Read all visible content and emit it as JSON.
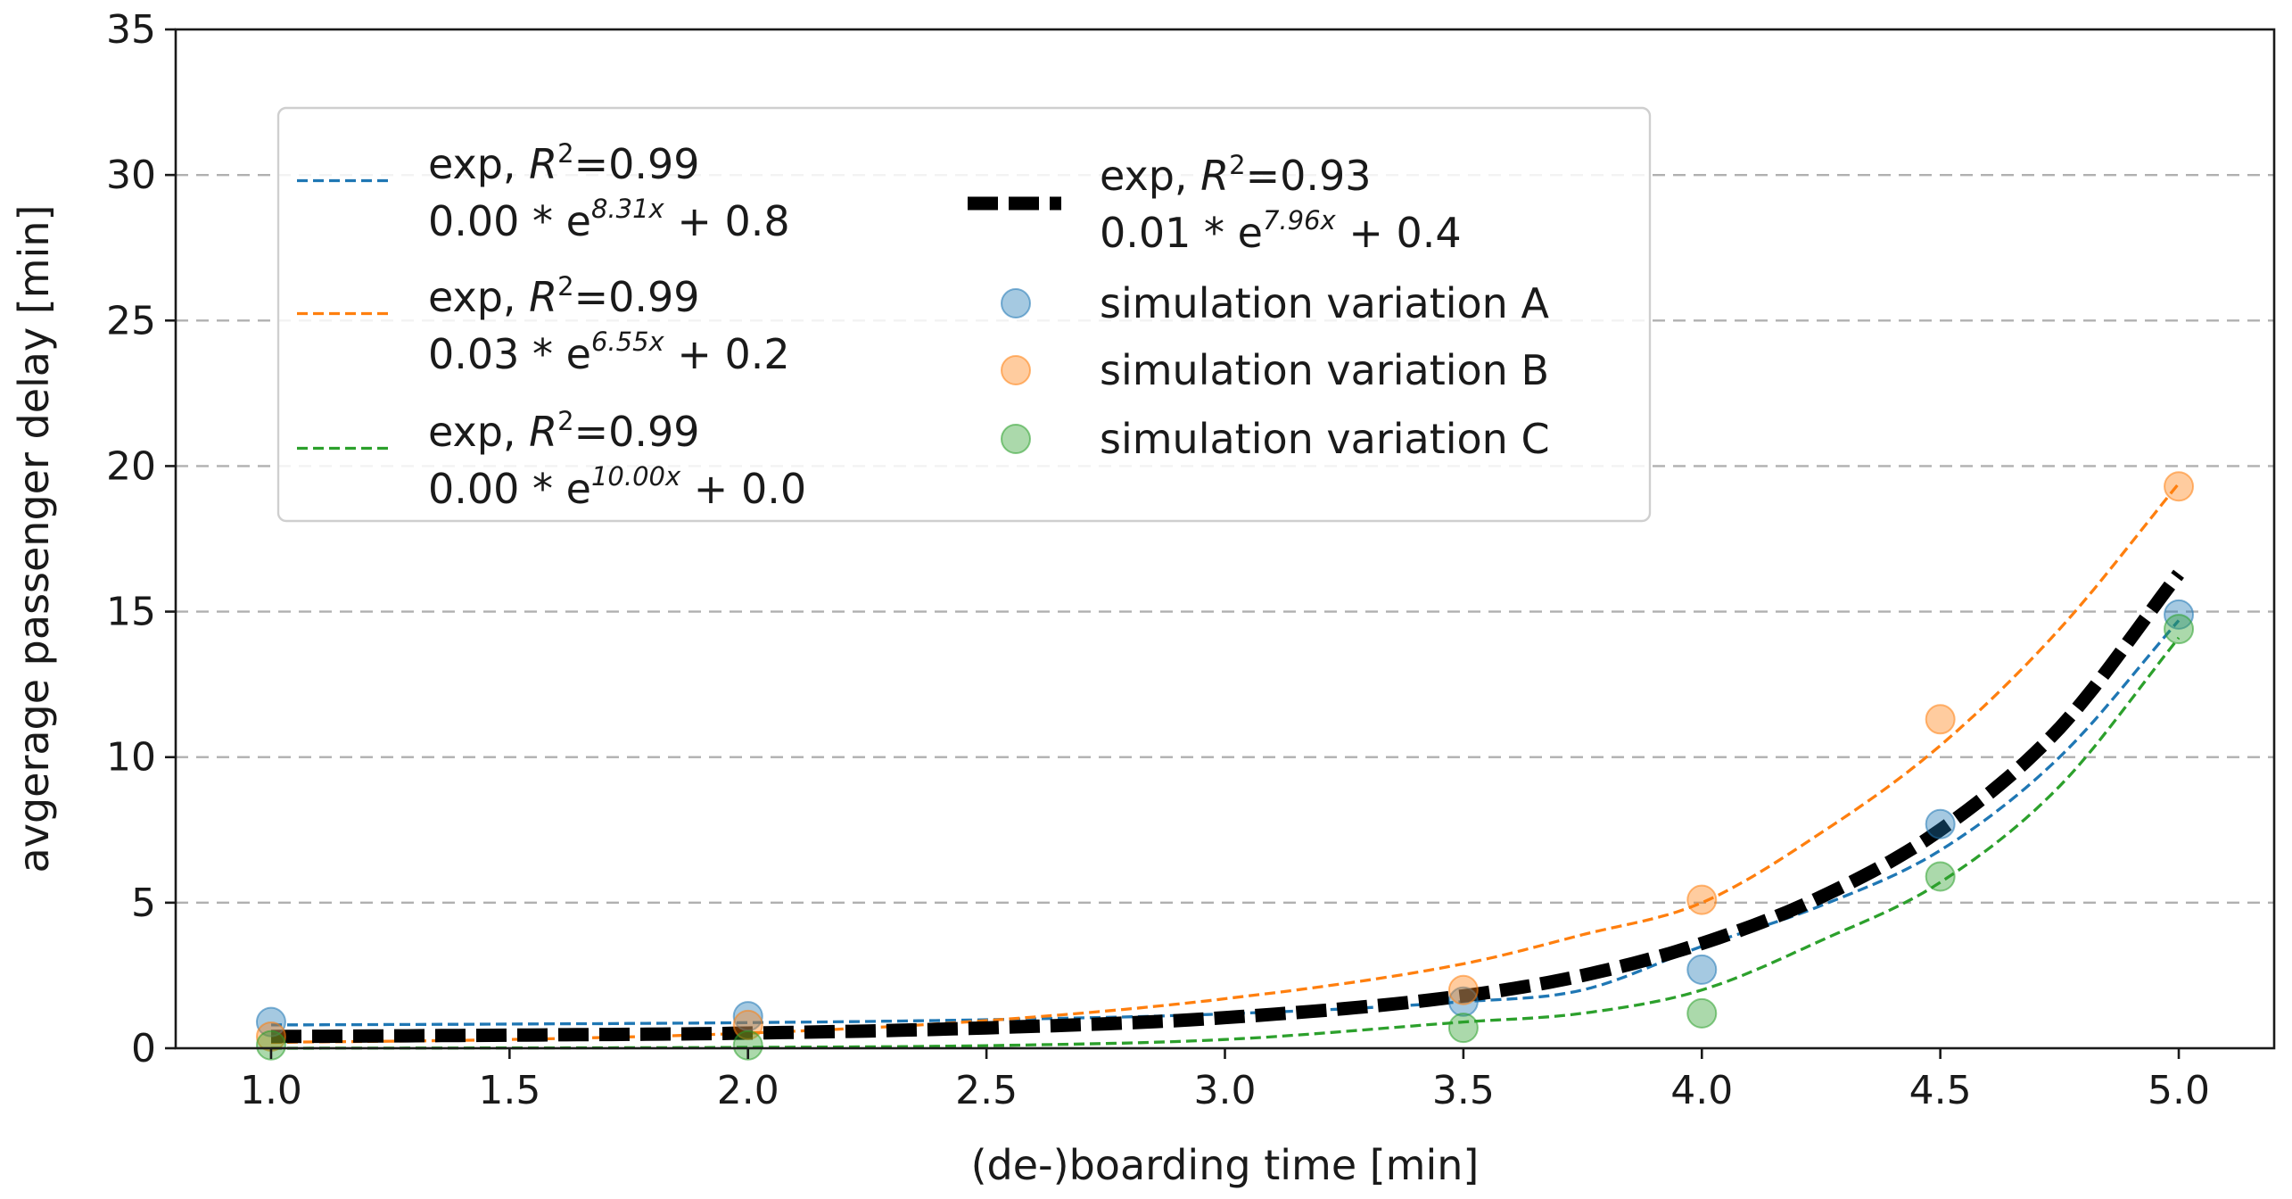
{
  "chart_data": {
    "type": "scatter",
    "title": "",
    "xlabel": "(de-)boarding time [min]",
    "ylabel": "avgerage passenger delay [min]",
    "xlim": [
      0.8,
      5.2
    ],
    "ylim": [
      0,
      35
    ],
    "xticks": [
      1.0,
      1.5,
      2.0,
      2.5,
      3.0,
      3.5,
      4.0,
      4.5,
      5.0
    ],
    "xtick_labels": [
      "1.0",
      "1.5",
      "2.0",
      "2.5",
      "3.0",
      "3.5",
      "4.0",
      "4.5",
      "5.0"
    ],
    "yticks": [
      0,
      5,
      10,
      15,
      20,
      25,
      30,
      35
    ],
    "ytick_labels": [
      "0",
      "5",
      "10",
      "15",
      "20",
      "25",
      "30",
      "35"
    ],
    "grid": "horizontal dashed",
    "legend_position": "upper-left",
    "scatter_series": [
      {
        "name": "simulation variation A",
        "color": "#1f77b4",
        "x": [
          1.0,
          2.0,
          3.5,
          4.0,
          4.5,
          5.0
        ],
        "y": [
          0.9,
          1.1,
          1.6,
          2.7,
          7.7,
          14.9
        ]
      },
      {
        "name": "simulation variation B",
        "color": "#ff7f0e",
        "x": [
          1.0,
          2.0,
          3.5,
          4.0,
          4.5,
          5.0
        ],
        "y": [
          0.4,
          0.8,
          2.0,
          5.1,
          11.3,
          19.3
        ]
      },
      {
        "name": "simulation variation C",
        "color": "#2ca02c",
        "x": [
          1.0,
          2.0,
          3.5,
          4.0,
          4.5,
          5.0
        ],
        "y": [
          0.1,
          0.1,
          0.7,
          1.2,
          5.9,
          14.4
        ]
      }
    ],
    "fit_series": [
      {
        "key": "A",
        "color": "#1f77b4",
        "style": "thin-dashed",
        "eq_label": "exp, R²=0.99",
        "formula": "0.00 * e^(8.31x) + 0.8",
        "label_r2_text": "exp, ",
        "label_r2_var": "R",
        "label_r2_sup": "2",
        "label_r2_val": "=0.99",
        "label_coef": "0.00 * e",
        "label_exp": "8.31x",
        "label_const": " + 0.8",
        "x": [
          1.0,
          1.5,
          2.0,
          2.5,
          3.0,
          3.5,
          3.75,
          4.0,
          4.25,
          4.5,
          4.75,
          5.0
        ],
        "y": [
          0.8,
          0.83,
          0.88,
          0.98,
          1.18,
          1.6,
          2.0,
          3.5,
          4.9,
          6.8,
          10.0,
          14.7
        ]
      },
      {
        "key": "B",
        "color": "#ff7f0e",
        "style": "thin-dashed",
        "eq_label": "exp, R²=0.99",
        "formula": "0.03 * e^(6.55x) + 0.2",
        "label_r2_text": "exp, ",
        "label_r2_var": "R",
        "label_r2_sup": "2",
        "label_r2_val": "=0.99",
        "label_coef": "0.03 * e",
        "label_exp": "6.55x",
        "label_const": " + 0.2",
        "x": [
          1.0,
          1.5,
          2.0,
          2.5,
          3.0,
          3.5,
          3.75,
          4.0,
          4.25,
          4.5,
          4.75,
          5.0
        ],
        "y": [
          0.2,
          0.3,
          0.52,
          0.95,
          1.7,
          2.9,
          3.9,
          5.0,
          7.4,
          10.4,
          14.4,
          19.4
        ]
      },
      {
        "key": "C",
        "color": "#2ca02c",
        "style": "thin-dashed",
        "eq_label": "exp, R²=0.99",
        "formula": "0.00 * e^(10.00x) + 0.0",
        "label_r2_text": "exp, ",
        "label_r2_var": "R",
        "label_r2_sup": "2",
        "label_r2_val": "=0.99",
        "label_coef": "0.00 * e",
        "label_exp": "10.00x",
        "label_const": " + 0.0",
        "x": [
          1.0,
          1.5,
          2.0,
          2.5,
          3.0,
          3.5,
          3.75,
          4.0,
          4.25,
          4.5,
          4.75,
          5.0
        ],
        "y": [
          0.0,
          0.01,
          0.03,
          0.09,
          0.3,
          0.9,
          1.2,
          2.0,
          3.7,
          5.7,
          9.0,
          14.1
        ]
      },
      {
        "key": "overall",
        "color": "#000000",
        "style": "thick-dashed",
        "eq_label": "exp, R²=0.93",
        "formula": "0.01 * e^(7.96x) + 0.4",
        "label_r2_text": "exp, ",
        "label_r2_var": "R",
        "label_r2_sup": "2",
        "label_r2_val": "=0.93",
        "label_coef": "0.01 * e",
        "label_exp": "7.96x",
        "label_const": " + 0.4",
        "x": [
          1.0,
          1.5,
          2.0,
          2.5,
          3.0,
          3.5,
          3.75,
          4.0,
          4.25,
          4.5,
          4.75,
          5.0
        ],
        "y": [
          0.4,
          0.45,
          0.52,
          0.7,
          1.05,
          1.8,
          2.5,
          3.6,
          5.2,
          7.5,
          11.0,
          16.3
        ]
      }
    ]
  }
}
